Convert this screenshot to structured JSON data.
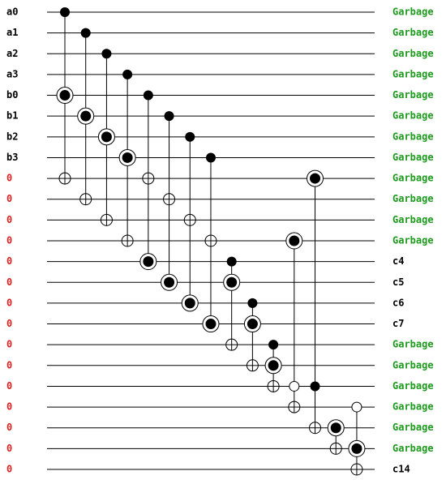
{
  "inputs": [
    "a0",
    "a1",
    "a2",
    "a3",
    "b0",
    "b1",
    "b2",
    "b3",
    "0",
    "0",
    "0",
    "0",
    "0",
    "0",
    "0",
    "0",
    "0",
    "0",
    "0",
    "0",
    "0",
    "0",
    "0"
  ],
  "outputs": [
    "Garbage",
    "Garbage",
    "Garbage",
    "Garbage",
    "Garbage",
    "Garbage",
    "Garbage",
    "Garbage",
    "Garbage",
    "Garbage",
    "Garbage",
    "Garbage",
    "c4",
    "c5",
    "c6",
    "c7",
    "Garbage",
    "Garbage",
    "Garbage",
    "Garbage",
    "Garbage",
    "Garbage",
    "c14"
  ]
}
